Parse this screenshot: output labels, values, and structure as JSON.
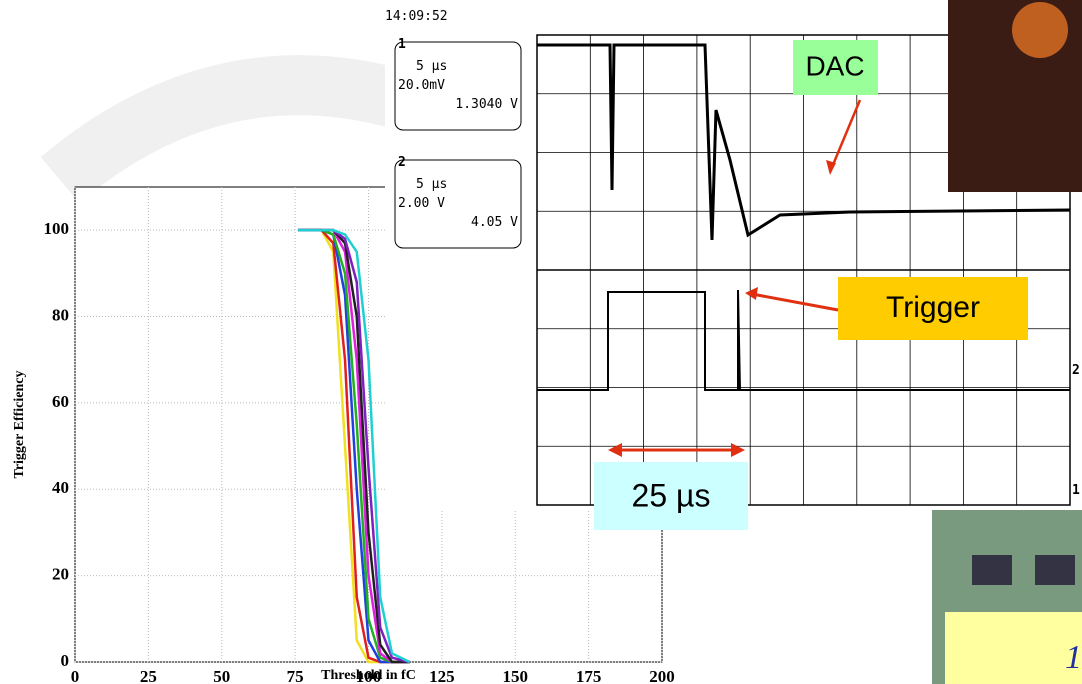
{
  "chart_data": {
    "type": "line",
    "xlabel": "Threshold in fC",
    "ylabel": "Trigger Efficiency",
    "xlim": [
      0,
      200
    ],
    "ylim": [
      0,
      110
    ],
    "xticks": [
      0,
      25,
      50,
      75,
      100,
      125,
      150,
      175,
      200
    ],
    "yticks": [
      0,
      20,
      40,
      60,
      80,
      100
    ],
    "grid": true,
    "x": [
      76,
      84,
      88,
      92,
      96,
      100,
      104,
      108,
      114
    ],
    "series": [
      {
        "color": "#f0e020",
        "values": [
          100,
          100,
          95,
          50,
          5,
          0,
          0,
          0,
          0
        ]
      },
      {
        "color": "#e02020",
        "values": [
          100,
          100,
          97,
          70,
          15,
          1,
          0,
          0,
          0
        ]
      },
      {
        "color": "#2040e0",
        "values": [
          100,
          100,
          99,
          85,
          40,
          5,
          0,
          0,
          0
        ]
      },
      {
        "color": "#20b020",
        "values": [
          100,
          100,
          99,
          90,
          55,
          10,
          1,
          0,
          0
        ]
      },
      {
        "color": "#e020e0",
        "values": [
          100,
          100,
          100,
          95,
          70,
          20,
          2,
          0,
          0
        ]
      },
      {
        "color": "#202020",
        "values": [
          100,
          100,
          100,
          97,
          80,
          30,
          4,
          0,
          0
        ]
      },
      {
        "color": "#8020c0",
        "values": [
          100,
          100,
          100,
          98,
          88,
          45,
          8,
          1,
          0
        ]
      },
      {
        "color": "#20d0d0",
        "values": [
          100,
          100,
          100,
          99,
          95,
          70,
          15,
          2,
          0
        ]
      }
    ]
  },
  "scope": {
    "time": "14:09:52",
    "channels": [
      {
        "id": "1",
        "lines": [
          "5 µs",
          "20.0mV",
          "1.3040 V"
        ]
      },
      {
        "id": "2",
        "lines": [
          "5 µs",
          "2.00 V",
          "4.05 V"
        ]
      }
    ],
    "markers": [
      "2",
      "1"
    ]
  },
  "annotations": {
    "dac": "DAC",
    "trigger": "Trigger",
    "period": "25 µs"
  },
  "footer": "1"
}
